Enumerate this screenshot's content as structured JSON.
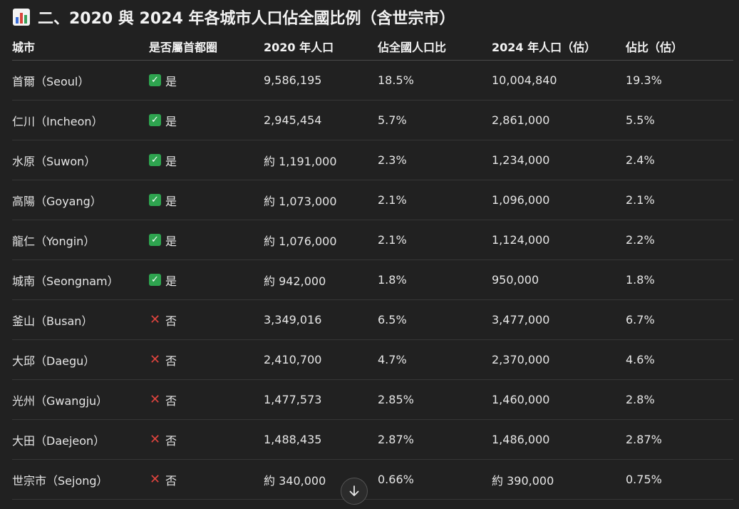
{
  "heading": {
    "icon": "bar-chart-icon",
    "title": "二、2020 與 2024 年各城市人口佔全國比例（含世宗市）"
  },
  "table": {
    "headers": [
      "城市",
      "是否屬首都圈",
      "2020 年人口",
      "佔全國人口比",
      "2024 年人口（估）",
      "佔比（估）"
    ],
    "rows": [
      {
        "city": "首爾（Seoul）",
        "capital_icon": "check-icon",
        "capital": "是",
        "pop2020": "9,586,195",
        "share2020": "18.5%",
        "pop2024": "10,004,840",
        "share2024": "19.3%"
      },
      {
        "city": "仁川（Incheon）",
        "capital_icon": "check-icon",
        "capital": "是",
        "pop2020": "2,945,454",
        "share2020": "5.7%",
        "pop2024": "2,861,000",
        "share2024": "5.5%"
      },
      {
        "city": "水原（Suwon）",
        "capital_icon": "check-icon",
        "capital": "是",
        "pop2020": "約 1,191,000",
        "share2020": "2.3%",
        "pop2024": "1,234,000",
        "share2024": "2.4%"
      },
      {
        "city": "高陽（Goyang）",
        "capital_icon": "check-icon",
        "capital": "是",
        "pop2020": "約 1,073,000",
        "share2020": "2.1%",
        "pop2024": "1,096,000",
        "share2024": "2.1%"
      },
      {
        "city": "龍仁（Yongin）",
        "capital_icon": "check-icon",
        "capital": "是",
        "pop2020": "約 1,076,000",
        "share2020": "2.1%",
        "pop2024": "1,124,000",
        "share2024": "2.2%"
      },
      {
        "city": "城南（Seongnam）",
        "capital_icon": "check-icon",
        "capital": "是",
        "pop2020": "約 942,000",
        "share2020": "1.8%",
        "pop2024": "950,000",
        "share2024": "1.8%"
      },
      {
        "city": "釜山（Busan）",
        "capital_icon": "cross-icon",
        "capital": "否",
        "pop2020": "3,349,016",
        "share2020": "6.5%",
        "pop2024": "3,477,000",
        "share2024": "6.7%"
      },
      {
        "city": "大邱（Daegu）",
        "capital_icon": "cross-icon",
        "capital": "否",
        "pop2020": "2,410,700",
        "share2020": "4.7%",
        "pop2024": "2,370,000",
        "share2024": "4.6%"
      },
      {
        "city": "光州（Gwangju）",
        "capital_icon": "cross-icon",
        "capital": "否",
        "pop2020": "1,477,573",
        "share2020": "2.85%",
        "pop2024": "1,460,000",
        "share2024": "2.8%"
      },
      {
        "city": "大田（Daejeon）",
        "capital_icon": "cross-icon",
        "capital": "否",
        "pop2020": "1,488,435",
        "share2020": "2.87%",
        "pop2024": "1,486,000",
        "share2024": "2.87%"
      },
      {
        "city": "世宗市（Sejong）",
        "capital_icon": "cross-icon",
        "capital": "否",
        "pop2020": "約 340,000",
        "share2020": "0.66%",
        "pop2024": "約 390,000",
        "share2024": "0.75%"
      }
    ]
  },
  "scroll_button": {
    "icon": "arrow-down-icon"
  },
  "colors": {
    "background": "#212121",
    "check": "#2ea44f",
    "cross": "#e0443e"
  }
}
